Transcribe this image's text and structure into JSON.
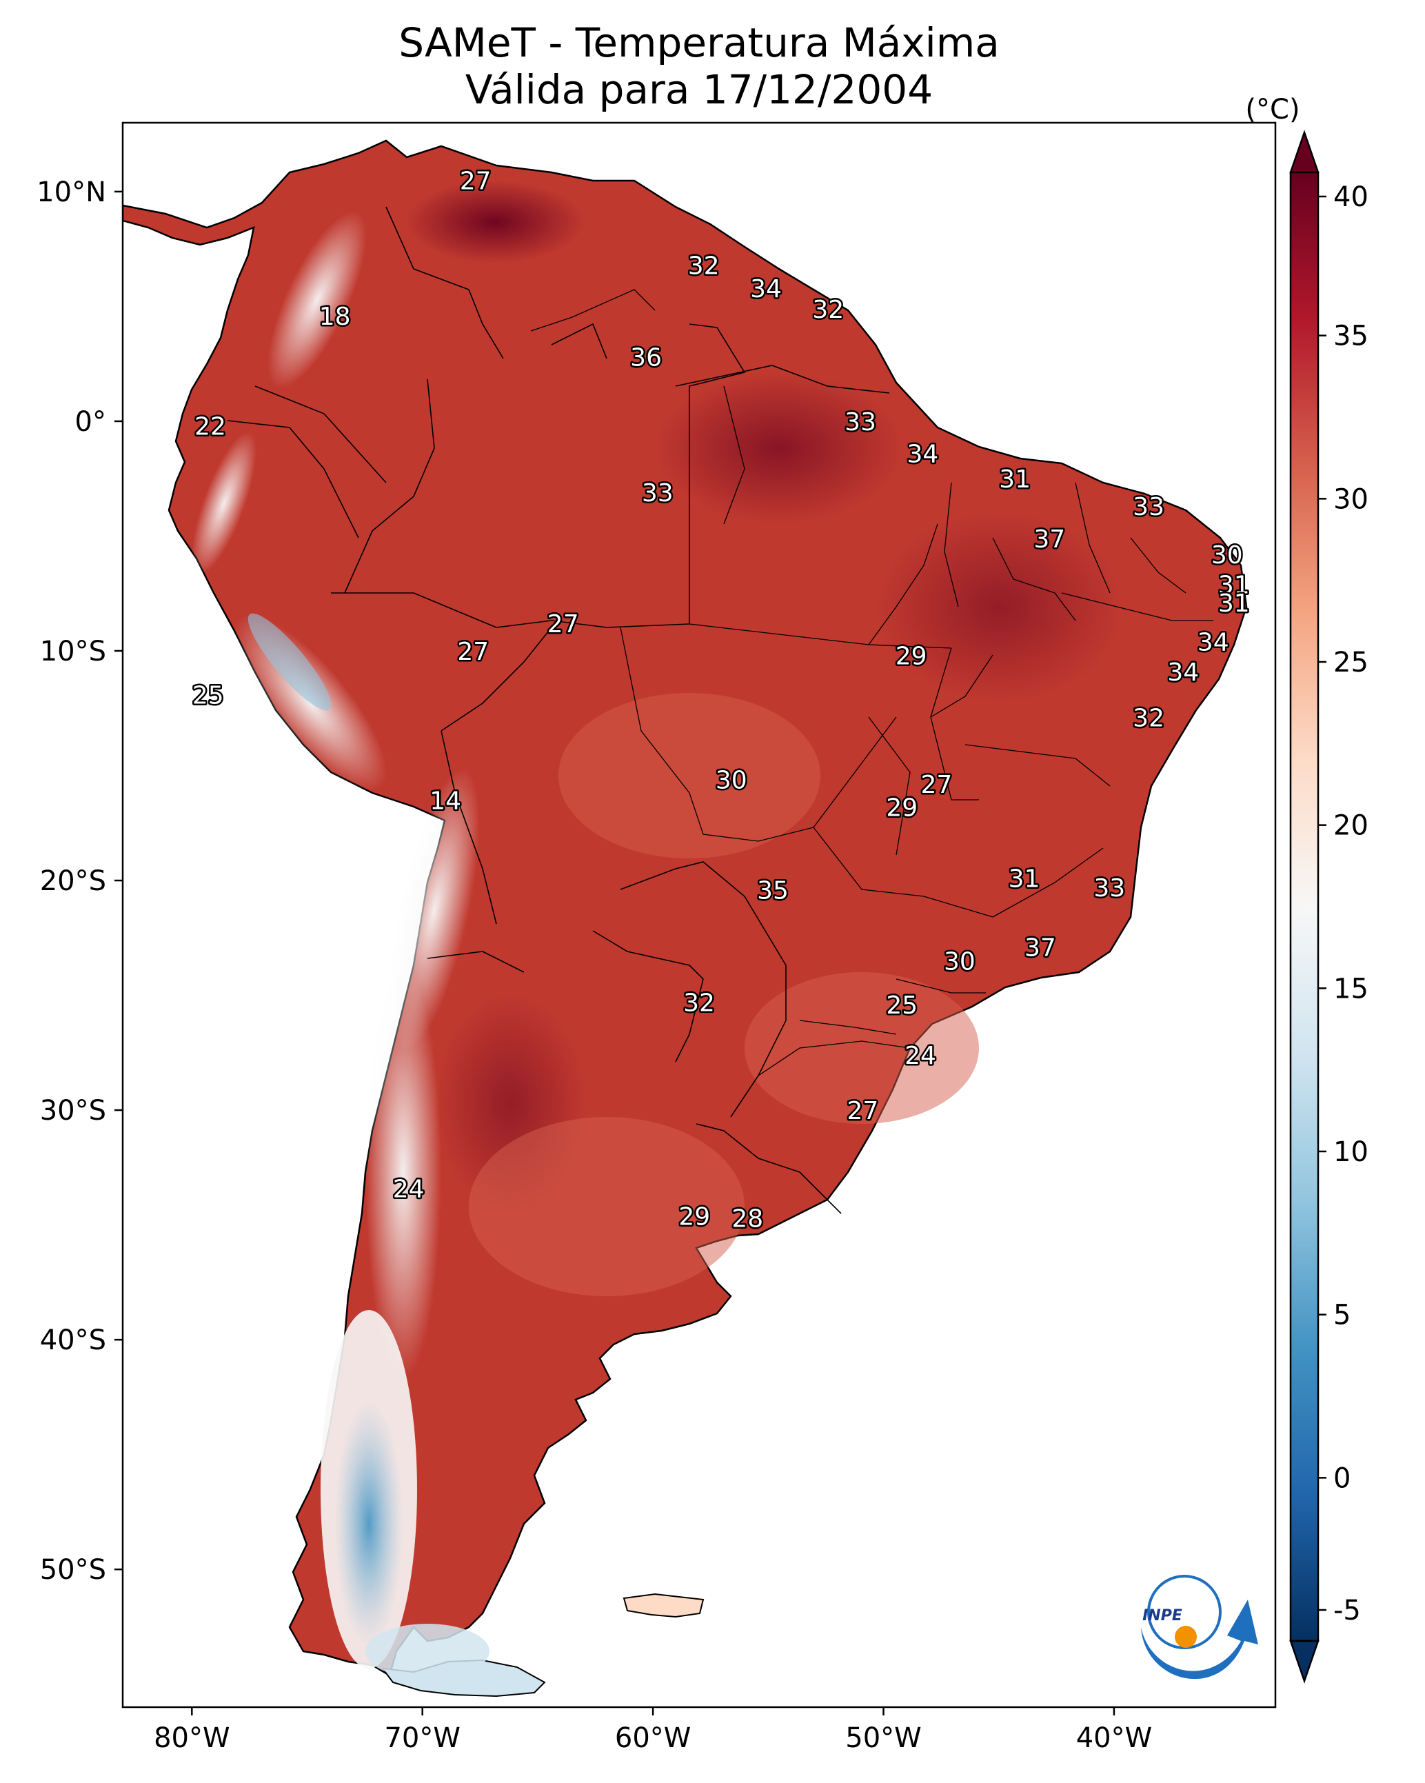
{
  "title": {
    "line1": "SAMeT - Temperatura Máxima",
    "line2": "Válida para 17/12/2004"
  },
  "map": {
    "lon_range": [
      -83,
      -33
    ],
    "lat_range": [
      -56,
      13
    ],
    "lon_ticks": [
      {
        "value": -80,
        "label": "80°W"
      },
      {
        "value": -70,
        "label": "70°W"
      },
      {
        "value": -60,
        "label": "60°W"
      },
      {
        "value": -50,
        "label": "50°W"
      },
      {
        "value": -40,
        "label": "40°W"
      }
    ],
    "lat_ticks": [
      {
        "value": 10,
        "label": "10°N"
      },
      {
        "value": 0,
        "label": "0°"
      },
      {
        "value": -10,
        "label": "10°S"
      },
      {
        "value": -20,
        "label": "20°S"
      },
      {
        "value": -30,
        "label": "30°S"
      },
      {
        "value": -40,
        "label": "40°S"
      },
      {
        "value": -50,
        "label": "50°S"
      }
    ],
    "point_labels": [
      {
        "lon": -67.7,
        "lat": 10.5,
        "text": "27"
      },
      {
        "lon": -73.8,
        "lat": 4.6,
        "text": "18"
      },
      {
        "lon": -79.2,
        "lat": -0.2,
        "text": "22"
      },
      {
        "lon": -57.8,
        "lat": 6.8,
        "text": "32"
      },
      {
        "lon": -55.1,
        "lat": 5.8,
        "text": "34"
      },
      {
        "lon": -52.4,
        "lat": 4.9,
        "text": "32"
      },
      {
        "lon": -60.3,
        "lat": 2.8,
        "text": "36"
      },
      {
        "lon": -51.0,
        "lat": 0.0,
        "text": "33"
      },
      {
        "lon": -48.3,
        "lat": -1.4,
        "text": "34"
      },
      {
        "lon": -59.8,
        "lat": -3.1,
        "text": "33"
      },
      {
        "lon": -44.3,
        "lat": -2.5,
        "text": "31"
      },
      {
        "lon": -38.5,
        "lat": -3.7,
        "text": "33"
      },
      {
        "lon": -42.8,
        "lat": -5.1,
        "text": "37"
      },
      {
        "lon": -35.1,
        "lat": -5.8,
        "text": "30"
      },
      {
        "lon": -34.8,
        "lat": -7.1,
        "text": "31"
      },
      {
        "lon": -34.8,
        "lat": -7.9,
        "text": "31"
      },
      {
        "lon": -35.7,
        "lat": -9.6,
        "text": "34"
      },
      {
        "lon": -37.0,
        "lat": -10.9,
        "text": "34"
      },
      {
        "lon": -38.5,
        "lat": -12.9,
        "text": "32"
      },
      {
        "lon": -63.9,
        "lat": -8.8,
        "text": "27"
      },
      {
        "lon": -67.8,
        "lat": -10.0,
        "text": "27"
      },
      {
        "lon": -48.8,
        "lat": -10.2,
        "text": "29"
      },
      {
        "lon": -79.3,
        "lat": -11.9,
        "text": "25"
      },
      {
        "lon": -56.6,
        "lat": -15.6,
        "text": "30"
      },
      {
        "lon": -47.7,
        "lat": -15.8,
        "text": "27"
      },
      {
        "lon": -49.2,
        "lat": -16.8,
        "text": "29"
      },
      {
        "lon": -69.0,
        "lat": -16.5,
        "text": "14"
      },
      {
        "lon": -43.9,
        "lat": -19.9,
        "text": "31"
      },
      {
        "lon": -40.2,
        "lat": -20.3,
        "text": "33"
      },
      {
        "lon": -54.8,
        "lat": -20.4,
        "text": "35"
      },
      {
        "lon": -43.2,
        "lat": -22.9,
        "text": "37"
      },
      {
        "lon": -46.7,
        "lat": -23.5,
        "text": "30"
      },
      {
        "lon": -58.0,
        "lat": -25.3,
        "text": "32"
      },
      {
        "lon": -49.2,
        "lat": -25.4,
        "text": "25"
      },
      {
        "lon": -48.4,
        "lat": -27.6,
        "text": "24"
      },
      {
        "lon": -50.9,
        "lat": -30.0,
        "text": "27"
      },
      {
        "lon": -70.6,
        "lat": -33.4,
        "text": "24"
      },
      {
        "lon": -58.2,
        "lat": -34.6,
        "text": "29"
      },
      {
        "lon": -55.9,
        "lat": -34.7,
        "text": "28"
      }
    ]
  },
  "colorbar": {
    "unit": "(°C)",
    "range": [
      -5,
      40
    ],
    "ticks": [
      {
        "value": 40,
        "label": "40"
      },
      {
        "value": 35,
        "label": "35"
      },
      {
        "value": 30,
        "label": "30"
      },
      {
        "value": 25,
        "label": "25"
      },
      {
        "value": 20,
        "label": "20"
      },
      {
        "value": 15,
        "label": "15"
      },
      {
        "value": 10,
        "label": "10"
      },
      {
        "value": 5,
        "label": "5"
      },
      {
        "value": 0,
        "label": "0"
      },
      {
        "value": -5,
        "label": "-5"
      }
    ],
    "colors": [
      "#053061",
      "#2166ac",
      "#4393c3",
      "#92c5de",
      "#d1e5f0",
      "#f7f7f7",
      "#fddbc7",
      "#f4a582",
      "#d6604d",
      "#b2182b",
      "#67001f"
    ]
  },
  "logo": {
    "text": "INPE",
    "blue": "#1f6fbf",
    "orange": "#f39200"
  }
}
